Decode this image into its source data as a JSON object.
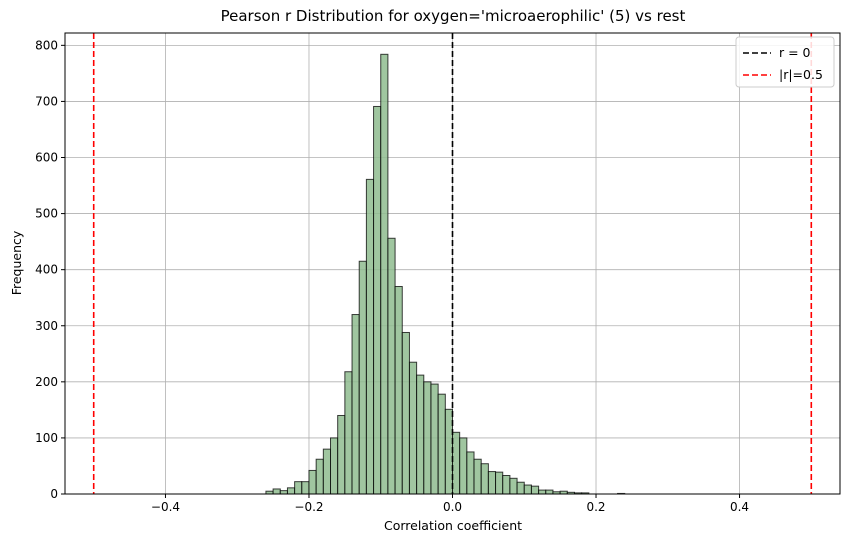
{
  "chart_data": {
    "type": "bar",
    "title": "Pearson r Distribution for oxygen='microaerophilic' (5) vs rest",
    "xlabel": "Correlation coefficient",
    "ylabel": "Frequency",
    "xlim": [
      -0.54,
      0.54
    ],
    "ylim": [
      0,
      822
    ],
    "x_ticks": [
      -0.4,
      -0.2,
      0.0,
      0.2,
      0.4
    ],
    "x_tick_labels": [
      "−0.4",
      "−0.2",
      "0.0",
      "0.2",
      "0.4"
    ],
    "y_ticks": [
      0,
      100,
      200,
      300,
      400,
      500,
      600,
      700,
      800
    ],
    "y_tick_labels": [
      "0",
      "100",
      "200",
      "300",
      "400",
      "500",
      "600",
      "700",
      "800"
    ],
    "grid": true,
    "bar_color": "#8fbc8f",
    "bar_edge_color": "#000000",
    "bins": {
      "start": -0.26,
      "width": 0.01,
      "counts": [
        5,
        9,
        6,
        11,
        22,
        22,
        42,
        62,
        80,
        100,
        140,
        218,
        320,
        415,
        561,
        691,
        784,
        456,
        370,
        288,
        235,
        212,
        200,
        196,
        178,
        151,
        110,
        100,
        75,
        62,
        54,
        40,
        39,
        33,
        28,
        21,
        16,
        14,
        7,
        7,
        4,
        5,
        3,
        2,
        2,
        0,
        0,
        0,
        0,
        1
      ]
    },
    "reference_lines": [
      {
        "x": 0.0,
        "color": "#000000",
        "style": "dashed",
        "label": "r = 0"
      },
      {
        "x": -0.5,
        "color": "#ff0000",
        "style": "dashed",
        "label": ""
      },
      {
        "x": 0.5,
        "color": "#ff0000",
        "style": "dashed",
        "label": "|r|=0.5"
      }
    ],
    "legend": {
      "placement": "top-right",
      "entries": [
        {
          "label": "r = 0",
          "color": "#000000"
        },
        {
          "label": "|r|=0.5",
          "color": "#ff0000"
        }
      ]
    }
  }
}
